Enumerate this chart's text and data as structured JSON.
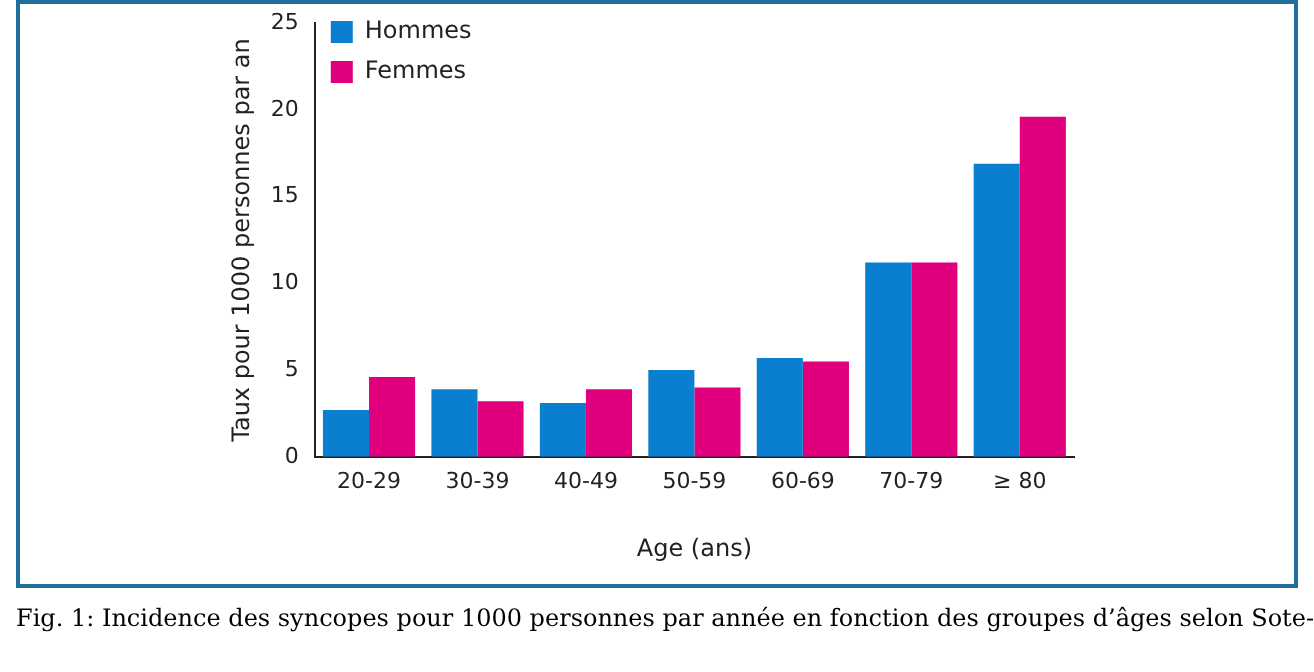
{
  "chart_data": {
    "type": "bar",
    "categories": [
      "20-29",
      "30-39",
      "40-49",
      "50-59",
      "60-69",
      "70-79",
      "≥ 80"
    ],
    "series": [
      {
        "name": "Hommes",
        "color": "#0a7fcf",
        "values": [
          2.7,
          3.9,
          3.1,
          5.0,
          5.7,
          11.2,
          16.9
        ]
      },
      {
        "name": "Femmes",
        "color": "#e0007e",
        "values": [
          4.6,
          3.2,
          3.9,
          4.0,
          5.5,
          11.2,
          19.6
        ]
      }
    ],
    "xlabel": "Age (ans)",
    "ylabel": "Taux pour 1000 personnes par an",
    "ylim": [
      0,
      25
    ],
    "yticks": [
      0,
      5,
      10,
      15,
      20,
      25
    ],
    "grid": false,
    "legend": "top left",
    "annotations": [
      "Fig. 1: Incidence des syncopes pour 1000 personnes par année en fonction des groupes d’âges selon Sote-"
    ]
  }
}
